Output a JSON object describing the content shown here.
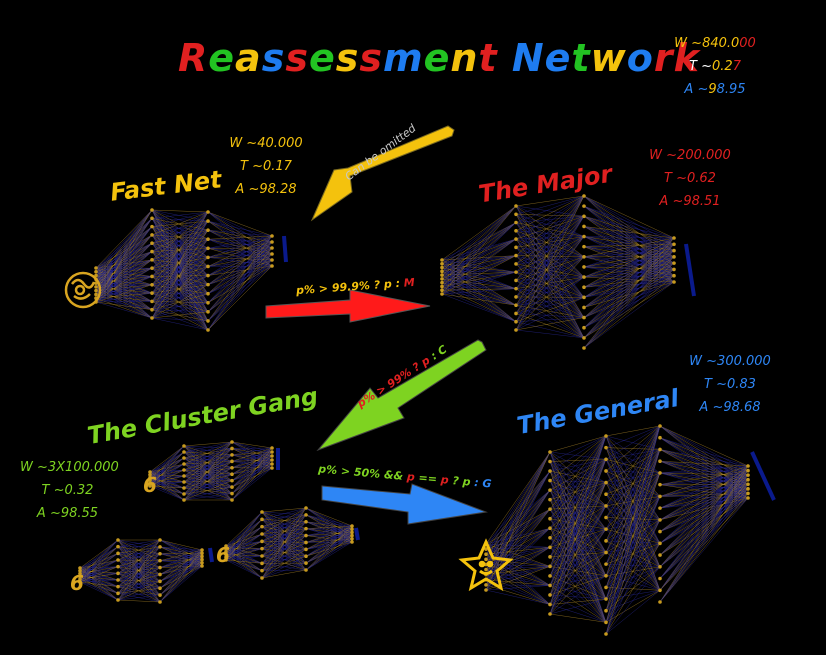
{
  "title": {
    "letters": [
      {
        "ch": "R",
        "color": "#e02020"
      },
      {
        "ch": "e",
        "color": "#22c322"
      },
      {
        "ch": "a",
        "color": "#f4c20d"
      },
      {
        "ch": "s",
        "color": "#1e7cf0"
      },
      {
        "ch": "s",
        "color": "#e02020"
      },
      {
        "ch": "e",
        "color": "#22c322"
      },
      {
        "ch": "s",
        "color": "#f4c20d"
      },
      {
        "ch": "s",
        "color": "#e02020"
      },
      {
        "ch": "m",
        "color": "#1e7cf0"
      },
      {
        "ch": "e",
        "color": "#22c322"
      },
      {
        "ch": "n",
        "color": "#f4c20d"
      },
      {
        "ch": "t",
        "color": "#e02020"
      },
      {
        "ch": " ",
        "color": "#ffffff"
      },
      {
        "ch": "N",
        "color": "#1e7cf0"
      },
      {
        "ch": "e",
        "color": "#1e7cf0"
      },
      {
        "ch": "t",
        "color": "#22c322"
      },
      {
        "ch": "w",
        "color": "#f4c20d"
      },
      {
        "ch": "o",
        "color": "#1e7cf0"
      },
      {
        "ch": "r",
        "color": "#e02020"
      },
      {
        "ch": "k",
        "color": "#e02020"
      }
    ]
  },
  "summary": {
    "w_prefix": "W ~",
    "w_a": "840.0",
    "w_b": "00",
    "t_prefix": "T ~",
    "t_a": "0.2",
    "t_b": "7",
    "a_prefix": "A ~",
    "a_a": "9",
    "a_b": "8.95"
  },
  "fast_net": {
    "name": "Fast Net",
    "w": "W ~40.000",
    "t": "T ~0.17",
    "a": "A ~98.28"
  },
  "major": {
    "name": "The Major",
    "w": "W ~200.000",
    "t": "T ~0.62",
    "a": "A ~98.51"
  },
  "general": {
    "name": "The General",
    "w": "W ~300.000",
    "t": "T ~0.83",
    "a": "A ~98.68"
  },
  "cluster": {
    "name": "The Cluster Gang",
    "w": "W ~3X100.000",
    "t": "T ~0.32",
    "a": "A ~98.55"
  },
  "omit_note": "Can be omitted",
  "cond_m": {
    "a": "p% > 99.9% ? p : ",
    "b": "M"
  },
  "cond_c": {
    "a": "p% > 99% ? ",
    "b": "p",
    " c": " : C"
  },
  "cond_g": {
    "a": "p% > 50% && ",
    "b": "p",
    " c": " == ",
    "d": "p",
    " e": " ? ",
    "f": "p",
    " g": " : G"
  },
  "colors": {
    "yellow": "#f4c20d",
    "red": "#e02020",
    "green": "#7ed321",
    "blue": "#2e86f5",
    "node": "#c79a1e",
    "edge_blue": "#2a2a9a",
    "edge_gold": "#b08a2a",
    "output": "#0a1a8c"
  }
}
